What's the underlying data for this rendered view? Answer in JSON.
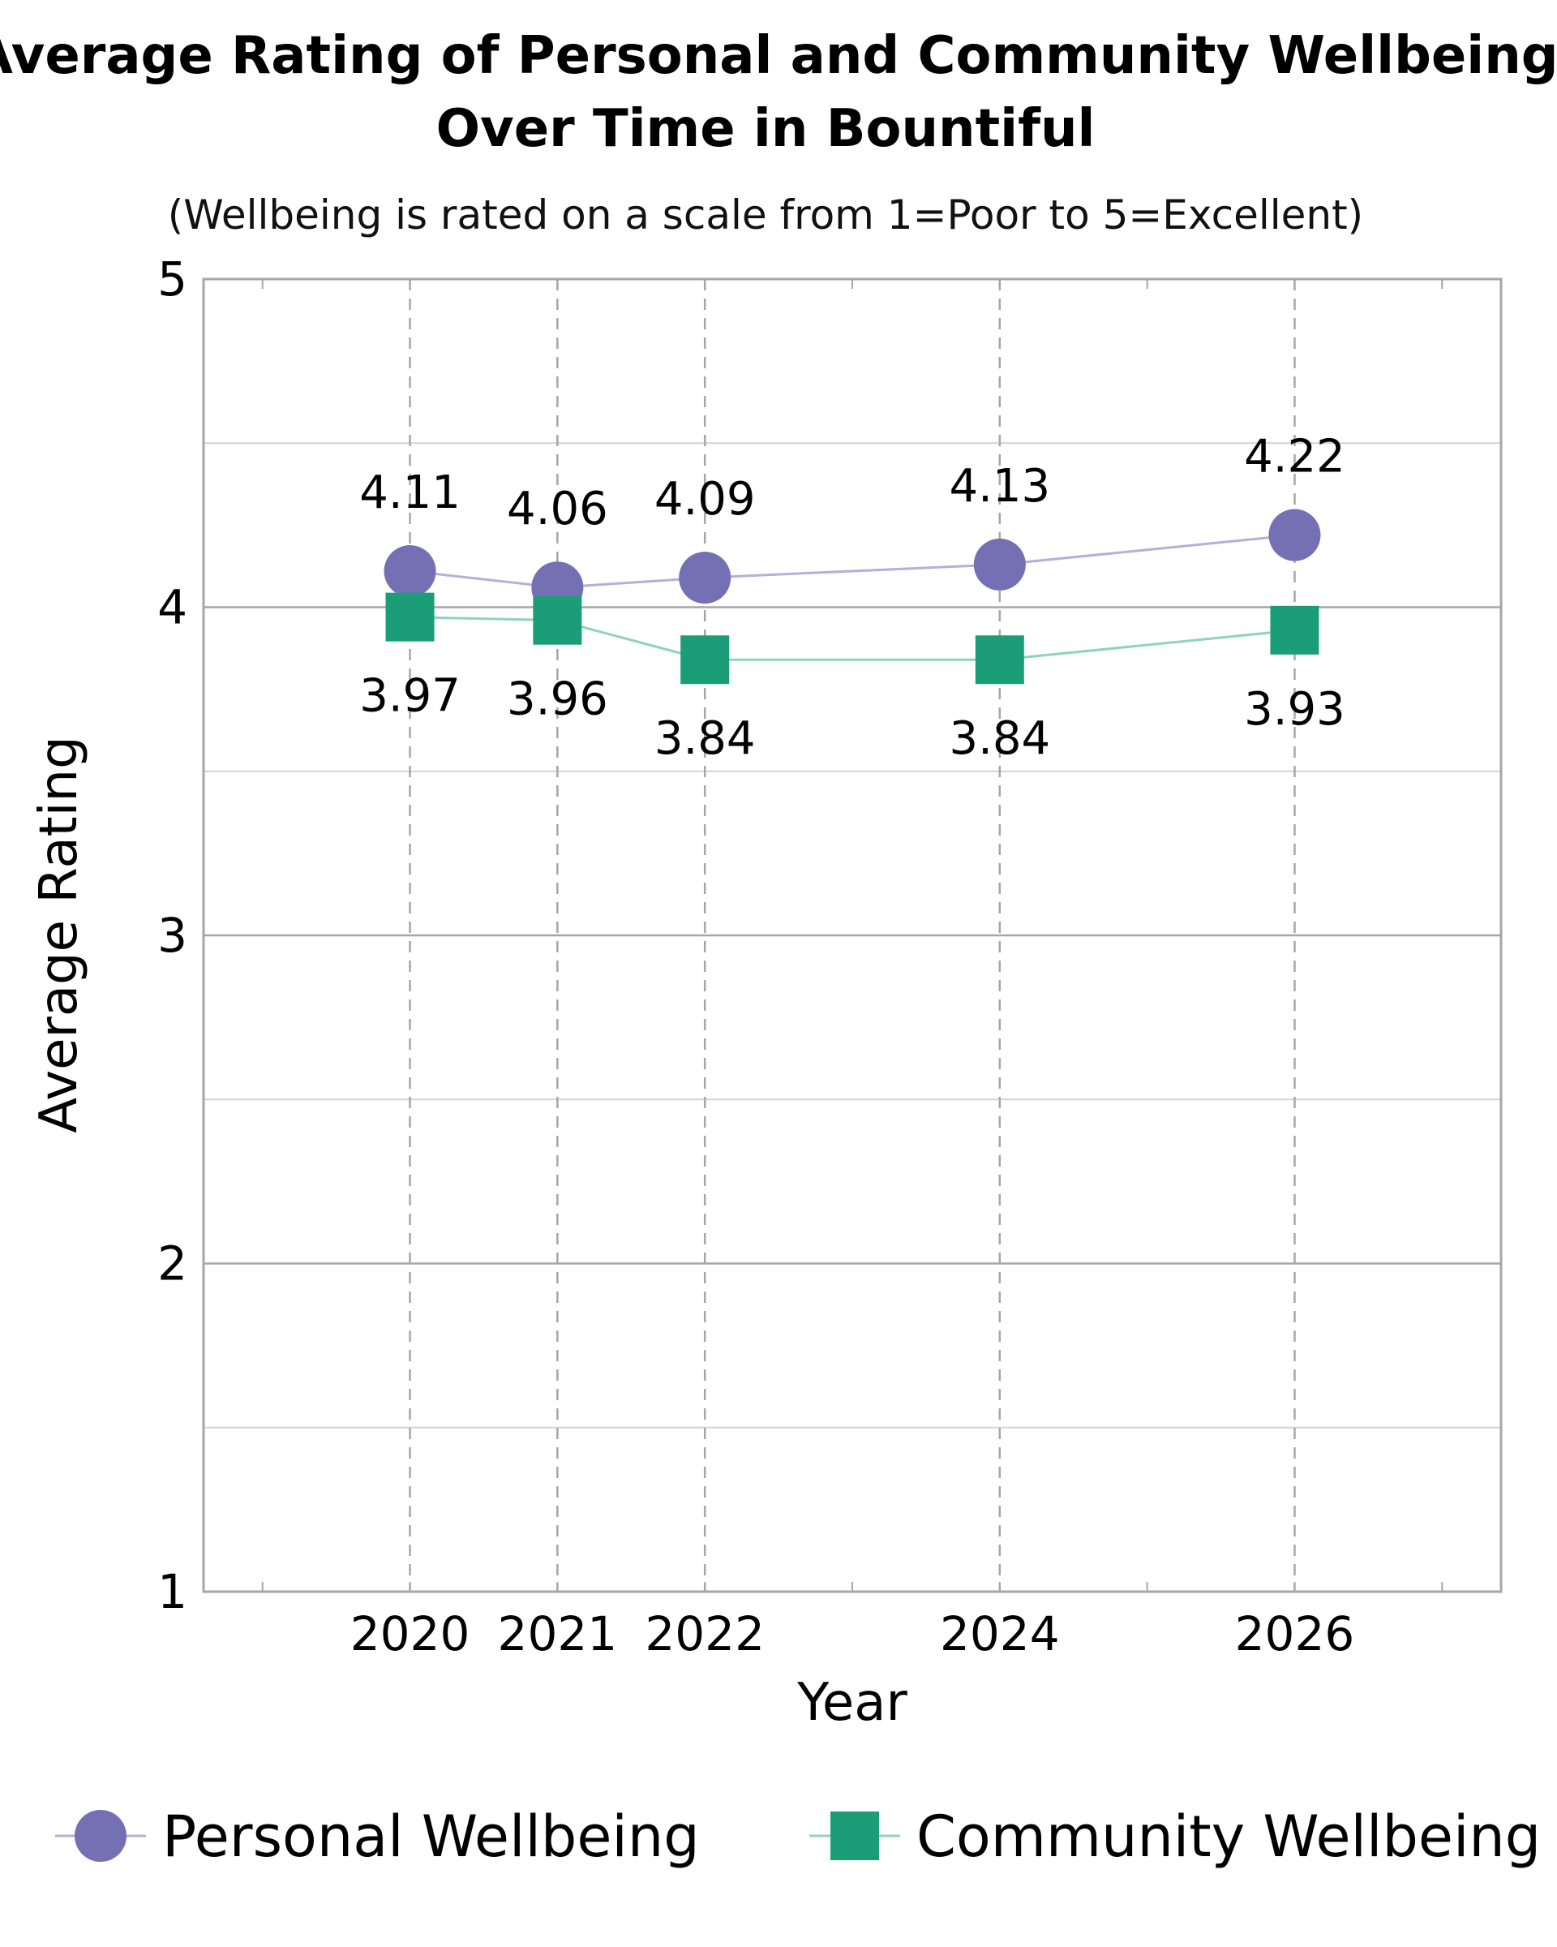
{
  "chart_data": {
    "type": "line",
    "title_lines": [
      "Average Rating of Personal and Community Wellbeing",
      "Over Time in Bountiful"
    ],
    "subtitle": "(Wellbeing is rated on a scale from 1=Poor to 5=Excellent)",
    "xlabel": "Year",
    "ylabel": "Average Rating",
    "x": [
      2020,
      2021,
      2022,
      2024,
      2026
    ],
    "x_tick_labels": [
      "2020",
      "2021",
      "2022",
      "2024",
      "2026"
    ],
    "xlim": [
      2018.6,
      2027.4
    ],
    "ylim": [
      1,
      5
    ],
    "y_ticks": [
      1,
      2,
      3,
      4,
      5
    ],
    "y_tick_labels": [
      "1",
      "2",
      "3",
      "4",
      "5"
    ],
    "grid": true,
    "legend_position": "bottom",
    "series": [
      {
        "name": "Personal Wellbeing",
        "values": [
          4.11,
          4.06,
          4.09,
          4.13,
          4.22
        ],
        "labels": [
          "4.11",
          "4.06",
          "4.09",
          "4.13",
          "4.22"
        ],
        "marker": "circle",
        "color": "#7570b3",
        "line_color": "#b3b0d9",
        "label_placement": "above"
      },
      {
        "name": "Community Wellbeing",
        "values": [
          3.97,
          3.96,
          3.84,
          3.84,
          3.93
        ],
        "labels": [
          "3.97",
          "3.96",
          "3.84",
          "3.84",
          "3.93"
        ],
        "marker": "square",
        "color": "#1b9e77",
        "line_color": "#8fd3bb",
        "label_placement": "below"
      }
    ]
  }
}
